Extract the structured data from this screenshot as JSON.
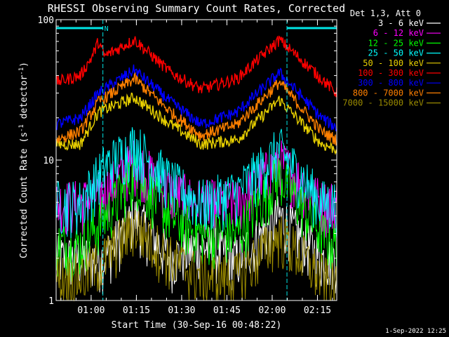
{
  "chart_data": {
    "type": "line",
    "title": "RHESSI Observing Summary Count Rates, Corrected",
    "xlabel": "Start Time (30-Sep-16 00:48:22)",
    "ylabel": "Corrected Count Rate (s⁻¹ detector⁻¹)",
    "ylabel_parts": {
      "base": "Corrected Count Rate (s",
      "sup1": "-1",
      "mid": " detector",
      "sup2": "-1",
      "end": ")"
    },
    "yscale": "log",
    "xlim_minutes": [
      0,
      93
    ],
    "ylim": [
      1,
      100
    ],
    "y_tick_labels": [
      {
        "label": "1",
        "value": 1
      },
      {
        "label": "10",
        "value": 10
      },
      {
        "label": "100",
        "value": 100
      }
    ],
    "x_ticks": [
      {
        "label": "01:00",
        "minutes": 11.6
      },
      {
        "label": "01:15",
        "minutes": 26.6
      },
      {
        "label": "01:30",
        "minutes": 41.6
      },
      {
        "label": "01:45",
        "minutes": 56.6
      },
      {
        "label": "02:00",
        "minutes": 71.6
      },
      {
        "label": "02:15",
        "minutes": 86.6
      }
    ],
    "legend_title": "Det 1,3, Att 0",
    "legend_position": "top-right",
    "flags": [
      {
        "label": "N",
        "start_min": 0,
        "end_min": 15.5,
        "color": "#00e5e5"
      },
      {
        "label": "",
        "start_min": 76.5,
        "end_min": 93,
        "color": "#00e5e5"
      }
    ],
    "vertical_markers_minutes": [
      0,
      15.5,
      76.5,
      93
    ],
    "series": [
      {
        "name": "3 - 6 keV",
        "color": "#ffffff",
        "level": "low",
        "anchors": [
          [
            0,
            2
          ],
          [
            8,
            2
          ],
          [
            16,
            2
          ],
          [
            26,
            4
          ],
          [
            38,
            2
          ],
          [
            48,
            2.5
          ],
          [
            60,
            2
          ],
          [
            74,
            4
          ],
          [
            88,
            2
          ],
          [
            93,
            2
          ]
        ]
      },
      {
        "name": "6 - 12 keV",
        "color": "#ff00ff",
        "level": "low",
        "anchors": [
          [
            0,
            5
          ],
          [
            8,
            5
          ],
          [
            16,
            6
          ],
          [
            26,
            10
          ],
          [
            38,
            6
          ],
          [
            48,
            5
          ],
          [
            60,
            5
          ],
          [
            74,
            10
          ],
          [
            88,
            5
          ],
          [
            93,
            5
          ]
        ]
      },
      {
        "name": "12 - 25 keV",
        "color": "#00ff00",
        "level": "low",
        "anchors": [
          [
            0,
            2.5
          ],
          [
            8,
            2.5
          ],
          [
            16,
            4
          ],
          [
            26,
            8
          ],
          [
            38,
            4
          ],
          [
            48,
            3
          ],
          [
            60,
            3
          ],
          [
            74,
            8
          ],
          [
            88,
            3
          ],
          [
            93,
            2.5
          ]
        ]
      },
      {
        "name": "25 - 50 keV",
        "color": "#00ffff",
        "level": "low",
        "anchors": [
          [
            0,
            5
          ],
          [
            8,
            5
          ],
          [
            16,
            9
          ],
          [
            26,
            13
          ],
          [
            38,
            7
          ],
          [
            48,
            5
          ],
          [
            60,
            6
          ],
          [
            74,
            12
          ],
          [
            88,
            5
          ],
          [
            93,
            5
          ]
        ]
      },
      {
        "name": "50 - 100 keV",
        "color": "#e8d000",
        "level": "high",
        "anchors": [
          [
            0,
            13
          ],
          [
            8,
            13
          ],
          [
            14,
            22
          ],
          [
            26,
            28
          ],
          [
            38,
            18
          ],
          [
            48,
            13
          ],
          [
            60,
            14
          ],
          [
            74,
            27
          ],
          [
            88,
            13
          ],
          [
            93,
            12
          ]
        ]
      },
      {
        "name": "100 - 300 keV",
        "color": "#ff0000",
        "level": "high",
        "anchors": [
          [
            0,
            36
          ],
          [
            8,
            40
          ],
          [
            12,
            55
          ],
          [
            14,
            70
          ],
          [
            16,
            55
          ],
          [
            26,
            72
          ],
          [
            38,
            42
          ],
          [
            48,
            32
          ],
          [
            60,
            38
          ],
          [
            74,
            72
          ],
          [
            88,
            38
          ],
          [
            93,
            30
          ]
        ]
      },
      {
        "name": "300 - 800 keV",
        "color": "#0000ff",
        "level": "high",
        "anchors": [
          [
            0,
            18
          ],
          [
            8,
            20
          ],
          [
            14,
            30
          ],
          [
            26,
            44
          ],
          [
            38,
            26
          ],
          [
            48,
            18
          ],
          [
            60,
            22
          ],
          [
            74,
            42
          ],
          [
            88,
            20
          ],
          [
            93,
            17
          ]
        ]
      },
      {
        "name": "800 - 7000 keV",
        "color": "#ff8000",
        "level": "high",
        "anchors": [
          [
            0,
            14
          ],
          [
            8,
            16
          ],
          [
            14,
            26
          ],
          [
            26,
            38
          ],
          [
            38,
            22
          ],
          [
            48,
            15
          ],
          [
            60,
            18
          ],
          [
            74,
            36
          ],
          [
            88,
            16
          ],
          [
            93,
            14
          ]
        ]
      },
      {
        "name": "7000 - 15000 keV",
        "color": "#9a8a00",
        "level": "low",
        "anchors": [
          [
            0,
            1.5
          ],
          [
            8,
            1.5
          ],
          [
            16,
            2
          ],
          [
            26,
            3.5
          ],
          [
            38,
            2
          ],
          [
            48,
            1.5
          ],
          [
            60,
            1.5
          ],
          [
            74,
            3
          ],
          [
            88,
            1.5
          ],
          [
            93,
            1.2
          ]
        ]
      }
    ]
  },
  "footer": {
    "date_stamp": "1-Sep-2022 12:25"
  }
}
